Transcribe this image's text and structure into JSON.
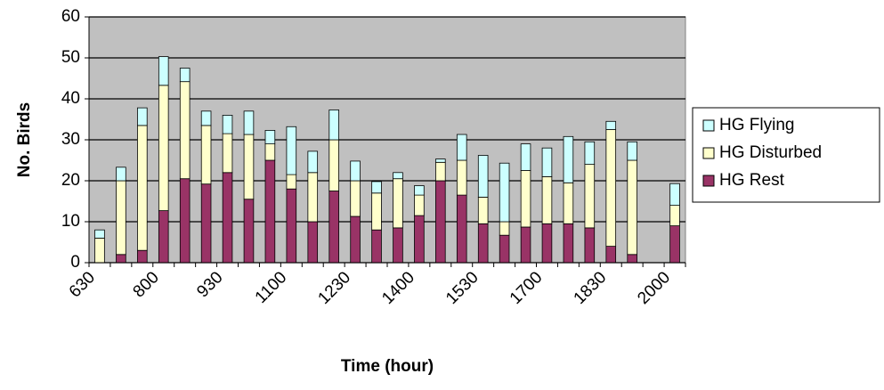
{
  "chart_data": {
    "type": "stacked_bar",
    "x_label": "Time (hour)",
    "y_label": "No. Birds",
    "categories": [
      "630",
      null,
      null,
      "800",
      null,
      null,
      "930",
      null,
      null,
      "1100",
      null,
      null,
      "1230",
      null,
      null,
      "1400",
      null,
      null,
      "1530",
      null,
      null,
      "1700",
      null,
      null,
      "1830",
      null,
      null,
      "2000"
    ],
    "series": [
      {
        "name": "HG Rest",
        "color": "#993366",
        "values": [
          0,
          2,
          3,
          12.7,
          20.5,
          19.2,
          22,
          15.5,
          25,
          18,
          10,
          17.5,
          11.3,
          8,
          8.5,
          11.5,
          20,
          16.5,
          9.5,
          6.7,
          8.7,
          9.5,
          9.5,
          8.5,
          4,
          2,
          null,
          9
        ]
      },
      {
        "name": "HG Disturbed",
        "color": "#ffffcc",
        "values": [
          6,
          18,
          30.5,
          30.6,
          23.7,
          14.3,
          9.5,
          15.8,
          4,
          3.5,
          12,
          12.5,
          8.7,
          9,
          12,
          5,
          4.5,
          8.5,
          6.5,
          3.3,
          13.8,
          11.5,
          10,
          15.5,
          28.5,
          23,
          null,
          5
        ]
      },
      {
        "name": "HG Flying",
        "color": "#ccffff",
        "values": [
          2,
          3.3,
          4.3,
          7,
          3.3,
          3.5,
          4.5,
          5.7,
          3.3,
          11.7,
          5.2,
          7.3,
          4.8,
          2.8,
          1.5,
          2.3,
          0.8,
          6.3,
          10.2,
          14.3,
          6.5,
          7,
          11.3,
          5.5,
          2,
          4.5,
          null,
          5.3
        ]
      }
    ],
    "ylim": [
      0,
      60
    ],
    "yticks": [
      0,
      10,
      20,
      30,
      40,
      50,
      60
    ],
    "grid": true,
    "plot_background": "#c0c0c0",
    "legend": "right"
  }
}
